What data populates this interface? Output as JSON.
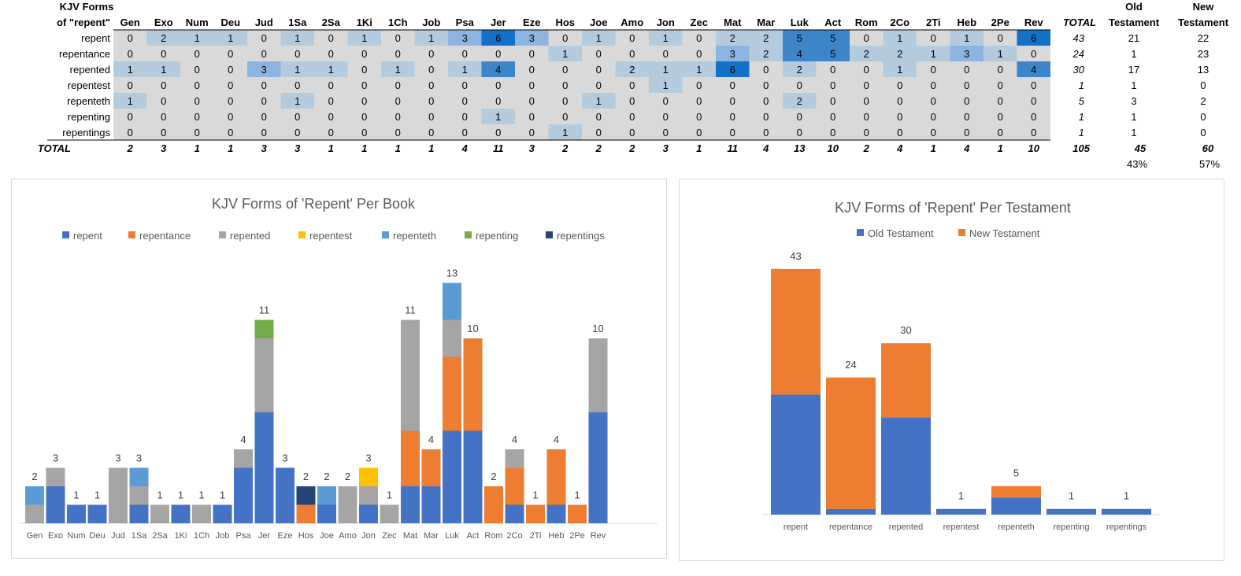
{
  "table": {
    "header_line1": "KJV Forms",
    "header_line2": "of \"repent\"",
    "total_label": "TOTAL",
    "ot_label_1": "Old",
    "ot_label_2": "Testament",
    "nt_label_1": "New",
    "nt_label_2": "Testament",
    "books": [
      "Gen",
      "Exo",
      "Num",
      "Deu",
      "Jud",
      "1Sa",
      "2Sa",
      "1Ki",
      "1Ch",
      "Job",
      "Psa",
      "Jer",
      "Eze",
      "Hos",
      "Joe",
      "Amo",
      "Jon",
      "Zec",
      "Mat",
      "Mar",
      "Luk",
      "Act",
      "Rom",
      "2Co",
      "2Ti",
      "Heb",
      "2Pe",
      "Rev"
    ],
    "rows": [
      {
        "form": "repent",
        "values": [
          0,
          2,
          1,
          1,
          0,
          1,
          0,
          1,
          0,
          1,
          3,
          6,
          3,
          0,
          1,
          0,
          1,
          0,
          2,
          2,
          5,
          5,
          0,
          1,
          0,
          1,
          0,
          6
        ],
        "total": "43",
        "ot": "21",
        "nt": "22"
      },
      {
        "form": "repentance",
        "values": [
          0,
          0,
          0,
          0,
          0,
          0,
          0,
          0,
          0,
          0,
          0,
          0,
          0,
          1,
          0,
          0,
          0,
          0,
          3,
          2,
          4,
          5,
          2,
          2,
          1,
          3,
          1,
          0
        ],
        "total": "24",
        "ot": "1",
        "nt": "23"
      },
      {
        "form": "repented",
        "values": [
          1,
          1,
          0,
          0,
          3,
          1,
          1,
          0,
          1,
          0,
          1,
          4,
          0,
          0,
          0,
          2,
          1,
          1,
          6,
          0,
          2,
          0,
          0,
          1,
          0,
          0,
          0,
          4
        ],
        "total": "30",
        "ot": "17",
        "nt": "13"
      },
      {
        "form": "repentest",
        "values": [
          0,
          0,
          0,
          0,
          0,
          0,
          0,
          0,
          0,
          0,
          0,
          0,
          0,
          0,
          0,
          0,
          1,
          0,
          0,
          0,
          0,
          0,
          0,
          0,
          0,
          0,
          0,
          0
        ],
        "total": "1",
        "ot": "1",
        "nt": "0"
      },
      {
        "form": "repenteth",
        "values": [
          1,
          0,
          0,
          0,
          0,
          1,
          0,
          0,
          0,
          0,
          0,
          0,
          0,
          0,
          1,
          0,
          0,
          0,
          0,
          0,
          2,
          0,
          0,
          0,
          0,
          0,
          0,
          0
        ],
        "total": "5",
        "ot": "3",
        "nt": "2"
      },
      {
        "form": "repenting",
        "values": [
          0,
          0,
          0,
          0,
          0,
          0,
          0,
          0,
          0,
          0,
          0,
          1,
          0,
          0,
          0,
          0,
          0,
          0,
          0,
          0,
          0,
          0,
          0,
          0,
          0,
          0,
          0,
          0
        ],
        "total": "1",
        "ot": "1",
        "nt": "0"
      },
      {
        "form": "repentings",
        "values": [
          0,
          0,
          0,
          0,
          0,
          0,
          0,
          0,
          0,
          0,
          0,
          0,
          0,
          1,
          0,
          0,
          0,
          0,
          0,
          0,
          0,
          0,
          0,
          0,
          0,
          0,
          0,
          0
        ],
        "total": "1",
        "ot": "1",
        "nt": "0"
      }
    ],
    "totals": [
      2,
      3,
      1,
      1,
      3,
      3,
      1,
      1,
      1,
      1,
      4,
      11,
      3,
      2,
      2,
      2,
      3,
      1,
      11,
      4,
      13,
      10,
      2,
      4,
      1,
      4,
      1,
      10
    ],
    "grand_total": "105",
    "ot_total": "45",
    "nt_total": "60",
    "ot_percent": "43%",
    "nt_percent": "57%",
    "heat_colors": {
      "zero": "#d9d9d9",
      "low": "#b4cbde",
      "mid": "#8db4e0",
      "high": "#3c85c9",
      "max": "#1570c8"
    }
  },
  "chart_data": [
    {
      "type": "bar",
      "stacked": true,
      "title": "KJV Forms of 'Repent' Per Book",
      "categories": [
        "Gen",
        "Exo",
        "Num",
        "Deu",
        "Jud",
        "1Sa",
        "2Sa",
        "1Ki",
        "1Ch",
        "Job",
        "Psa",
        "Jer",
        "Eze",
        "Hos",
        "Joe",
        "Amo",
        "Jon",
        "Zec",
        "Mat",
        "Mar",
        "Luk",
        "Act",
        "Rom",
        "2Co",
        "2Ti",
        "Heb",
        "2Pe",
        "Rev"
      ],
      "series": [
        {
          "name": "repent",
          "color": "#4472c4",
          "values": [
            0,
            2,
            1,
            1,
            0,
            1,
            0,
            1,
            0,
            1,
            3,
            6,
            3,
            0,
            1,
            0,
            1,
            0,
            2,
            2,
            5,
            5,
            0,
            1,
            0,
            1,
            0,
            6
          ]
        },
        {
          "name": "repentance",
          "color": "#ed7d31",
          "values": [
            0,
            0,
            0,
            0,
            0,
            0,
            0,
            0,
            0,
            0,
            0,
            0,
            0,
            1,
            0,
            0,
            0,
            0,
            3,
            2,
            4,
            5,
            2,
            2,
            1,
            3,
            1,
            0
          ]
        },
        {
          "name": "repented",
          "color": "#a5a5a5",
          "values": [
            1,
            1,
            0,
            0,
            3,
            1,
            1,
            0,
            1,
            0,
            1,
            4,
            0,
            0,
            0,
            2,
            1,
            1,
            6,
            0,
            2,
            0,
            0,
            1,
            0,
            0,
            0,
            4
          ]
        },
        {
          "name": "repentest",
          "color": "#ffc000",
          "values": [
            0,
            0,
            0,
            0,
            0,
            0,
            0,
            0,
            0,
            0,
            0,
            0,
            0,
            0,
            0,
            0,
            1,
            0,
            0,
            0,
            0,
            0,
            0,
            0,
            0,
            0,
            0,
            0
          ]
        },
        {
          "name": "repenteth",
          "color": "#5b9bd5",
          "values": [
            1,
            0,
            0,
            0,
            0,
            1,
            0,
            0,
            0,
            0,
            0,
            0,
            0,
            0,
            1,
            0,
            0,
            0,
            0,
            0,
            2,
            0,
            0,
            0,
            0,
            0,
            0,
            0
          ]
        },
        {
          "name": "repenting",
          "color": "#70ad47",
          "values": [
            0,
            0,
            0,
            0,
            0,
            0,
            0,
            0,
            0,
            0,
            0,
            1,
            0,
            0,
            0,
            0,
            0,
            0,
            0,
            0,
            0,
            0,
            0,
            0,
            0,
            0,
            0,
            0
          ]
        },
        {
          "name": "repentings",
          "color": "#264478",
          "values": [
            0,
            0,
            0,
            0,
            0,
            0,
            0,
            0,
            0,
            0,
            0,
            0,
            0,
            1,
            0,
            0,
            0,
            0,
            0,
            0,
            0,
            0,
            0,
            0,
            0,
            0,
            0,
            0
          ]
        }
      ],
      "totals": [
        2,
        3,
        1,
        1,
        3,
        3,
        1,
        1,
        1,
        1,
        4,
        11,
        3,
        2,
        2,
        2,
        3,
        1,
        11,
        4,
        13,
        10,
        2,
        4,
        1,
        4,
        1,
        10
      ],
      "ylim": [
        0,
        13
      ],
      "grid": false,
      "legend": "top"
    },
    {
      "type": "bar",
      "stacked": true,
      "title": "KJV Forms of 'Repent' Per Testament",
      "categories": [
        "repent",
        "repentance",
        "repented",
        "repentest",
        "repenteth",
        "repenting",
        "repentings"
      ],
      "series": [
        {
          "name": "Old Testament",
          "color": "#4472c4",
          "values": [
            21,
            1,
            17,
            1,
            3,
            1,
            1
          ]
        },
        {
          "name": "New Testament",
          "color": "#ed7d31",
          "values": [
            22,
            23,
            13,
            0,
            2,
            0,
            0
          ]
        }
      ],
      "totals": [
        43,
        24,
        30,
        1,
        5,
        1,
        1
      ],
      "ylim": [
        0,
        43
      ],
      "grid": false,
      "legend": "top"
    }
  ]
}
